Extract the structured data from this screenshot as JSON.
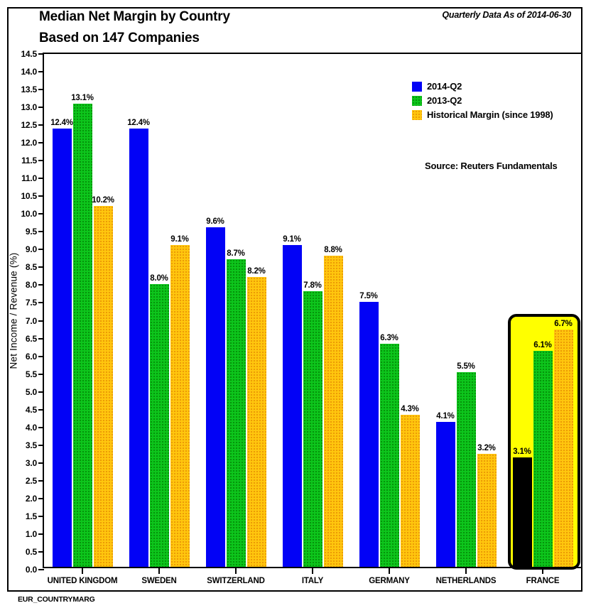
{
  "header": {
    "title_line1": "Median Net Margin by Country",
    "title_line2": "Based on 147 Companies",
    "annotation": "Quarterly Data As of 2014-06-30"
  },
  "footer": {
    "code": "EUR_COUNTRYMARG"
  },
  "chart_data": {
    "type": "bar",
    "title": "Median Net Margin by Country — Based on 147 Companies",
    "xlabel": "",
    "ylabel": "Net Income / Revenue (%)",
    "ylim": [
      0,
      14.5
    ],
    "ytick_step": 0.5,
    "grid": false,
    "legend_position": "upper right",
    "source": "Source: Reuters Fundamentals",
    "value_label_suffix": "%",
    "categories": [
      "UNITED KINGDOM",
      "SWEDEN",
      "SWITZERLAND",
      "ITALY",
      "GERMANY",
      "NETHERLANDS",
      "FRANCE"
    ],
    "series": [
      {
        "name": "2014-Q2",
        "color": "#0202f6",
        "values": [
          12.4,
          12.4,
          9.6,
          9.1,
          7.5,
          4.1,
          3.1
        ]
      },
      {
        "name": "2013-Q2",
        "color": "#0dc51c",
        "values": [
          13.1,
          8.0,
          8.7,
          7.8,
          6.3,
          5.5,
          6.1
        ]
      },
      {
        "name": "Historical Margin (since 1998)",
        "color": "#ffc60e",
        "values": [
          10.2,
          9.1,
          8.2,
          8.8,
          4.3,
          3.2,
          6.7
        ]
      }
    ],
    "highlight": {
      "category": "FRANCE",
      "box_fill_color": "#ffff00",
      "box_border_color": "#000000",
      "series_color_overrides": {
        "2014-Q2": "#000000"
      }
    }
  }
}
